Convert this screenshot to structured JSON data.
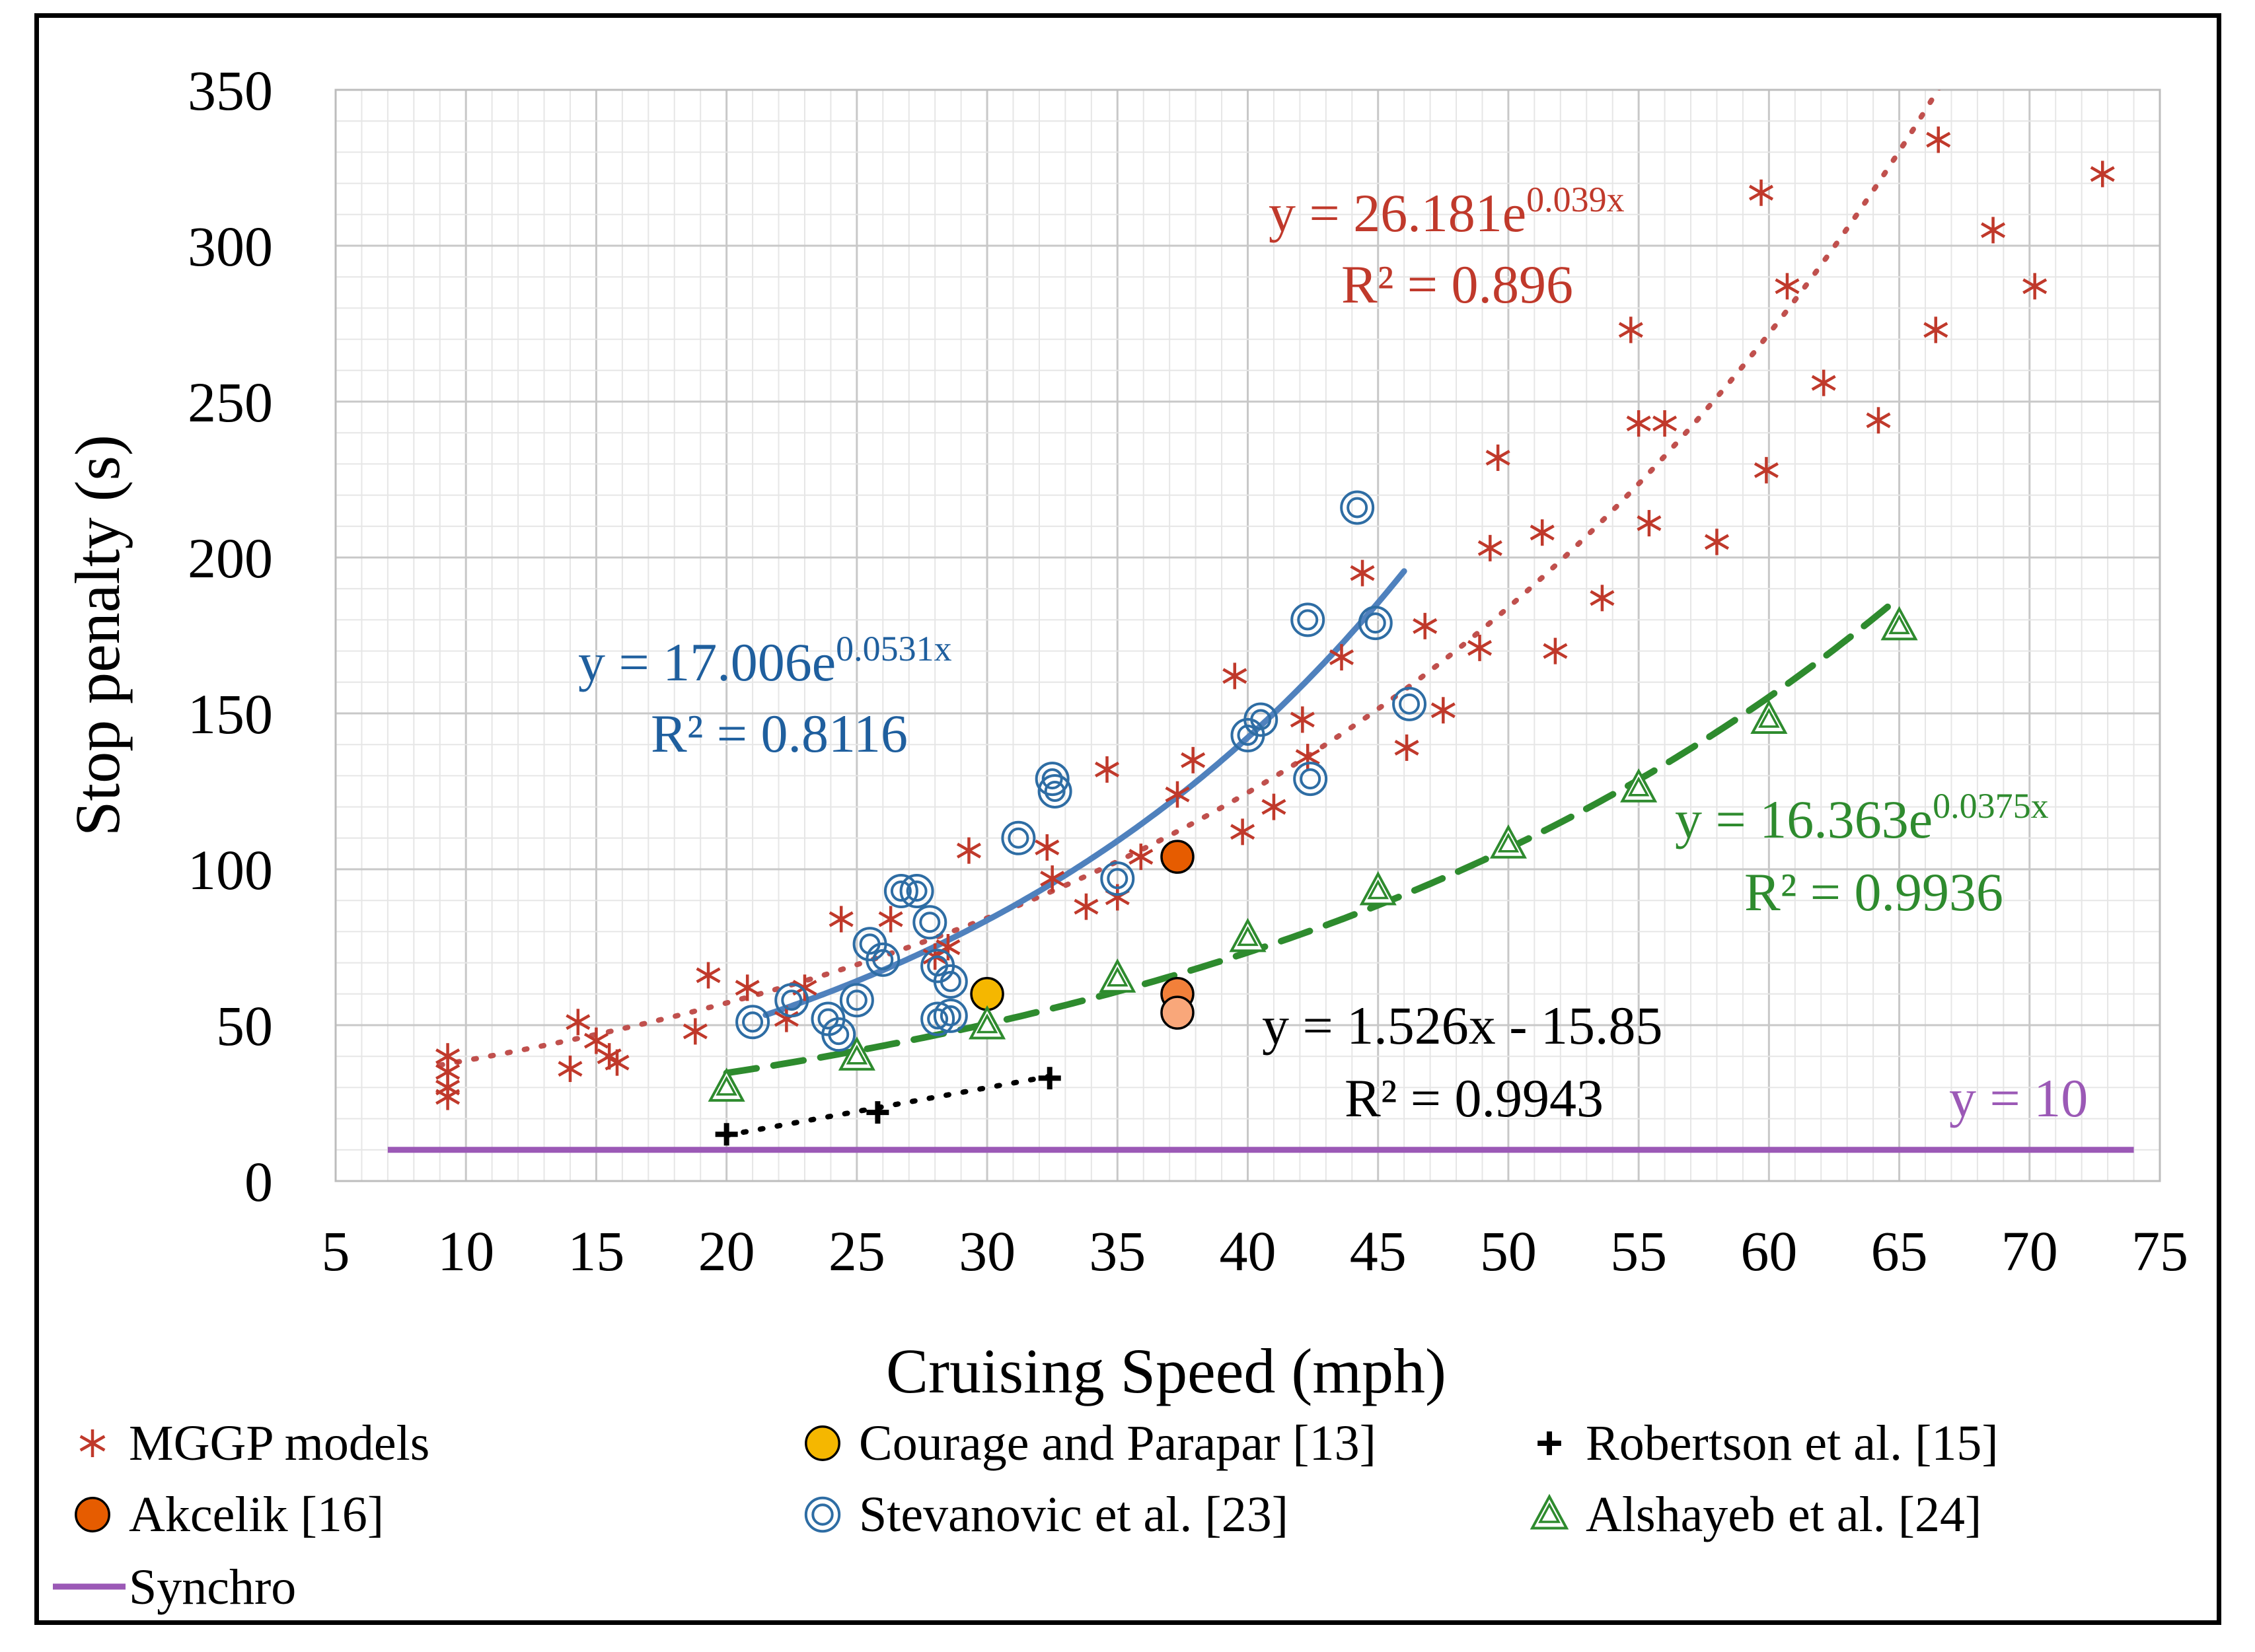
{
  "chart_data": {
    "type": "scatter",
    "xlabel": "Cruising Speed (mph)",
    "ylabel": "Stop penalty (s)",
    "xlim": [
      5,
      75
    ],
    "ylim": [
      0,
      350
    ],
    "xticks": [
      "5",
      "10",
      "15",
      "20",
      "25",
      "30",
      "35",
      "40",
      "45",
      "50",
      "55",
      "60",
      "65",
      "70",
      "75"
    ],
    "yticks": [
      "0",
      "50",
      "100",
      "150",
      "200",
      "250",
      "300",
      "350"
    ],
    "grid": true,
    "legend_position": "bottom",
    "series": [
      {
        "name": "MGGP models",
        "marker": "asterisk",
        "color": "#C0392B",
        "points": [
          [
            9.3,
            40
          ],
          [
            9.3,
            35
          ],
          [
            9.3,
            30
          ],
          [
            9.3,
            27
          ],
          [
            14,
            36
          ],
          [
            14.3,
            51
          ],
          [
            15,
            45
          ],
          [
            15.5,
            40
          ],
          [
            15.8,
            38
          ],
          [
            18.8,
            48
          ],
          [
            19.3,
            66
          ],
          [
            20.8,
            62
          ],
          [
            22.3,
            52
          ],
          [
            23,
            62
          ],
          [
            24.4,
            84
          ],
          [
            26.3,
            84
          ],
          [
            28,
            72
          ],
          [
            28.5,
            75
          ],
          [
            29.3,
            106
          ],
          [
            32.3,
            107
          ],
          [
            32.5,
            97
          ],
          [
            33.8,
            88
          ],
          [
            34.6,
            132
          ],
          [
            35,
            91
          ],
          [
            35.9,
            104
          ],
          [
            37.3,
            124
          ],
          [
            37.9,
            135
          ],
          [
            39.5,
            162
          ],
          [
            39.8,
            112
          ],
          [
            41,
            120
          ],
          [
            42.1,
            148
          ],
          [
            42.3,
            136
          ],
          [
            43.6,
            168
          ],
          [
            44.4,
            195
          ],
          [
            46.1,
            139
          ],
          [
            46.8,
            178
          ],
          [
            47.5,
            151
          ],
          [
            48.9,
            171
          ],
          [
            49.3,
            203
          ],
          [
            49.6,
            232
          ],
          [
            51.3,
            208
          ],
          [
            51.8,
            170
          ],
          [
            53.6,
            187
          ],
          [
            54.7,
            273
          ],
          [
            55,
            243
          ],
          [
            55.4,
            211
          ],
          [
            56,
            243
          ],
          [
            58,
            205
          ],
          [
            59.7,
            317
          ],
          [
            59.9,
            228
          ],
          [
            60.7,
            287
          ],
          [
            62.1,
            256
          ],
          [
            64.2,
            244
          ],
          [
            66.4,
            273
          ],
          [
            66.5,
            334
          ],
          [
            68.6,
            305
          ],
          [
            70.2,
            287
          ],
          [
            72.8,
            323
          ]
        ]
      },
      {
        "name": "Courage and Parapar [13]",
        "marker": "filled-circle",
        "color": "#F5B700",
        "points": [
          [
            30,
            60
          ]
        ]
      },
      {
        "name": "Robertson et al. [15]",
        "marker": "plus",
        "color": "#000000",
        "points": [
          [
            20,
            15
          ],
          [
            25.8,
            22
          ],
          [
            32.4,
            33
          ]
        ]
      },
      {
        "name": "Akcelik [16]",
        "marker": "filled-circle",
        "color": "#E65C00",
        "points": [
          [
            37.3,
            104
          ],
          [
            37.3,
            60
          ],
          [
            37.3,
            54
          ]
        ]
      },
      {
        "name": "Stevanovic et al. [23]",
        "marker": "double-circle",
        "color": "#2E6DA4",
        "points": [
          [
            21,
            51
          ],
          [
            22.5,
            58
          ],
          [
            23.9,
            52
          ],
          [
            24.3,
            47
          ],
          [
            25,
            58
          ],
          [
            25.5,
            76
          ],
          [
            26,
            71
          ],
          [
            26.7,
            93
          ],
          [
            27.3,
            93
          ],
          [
            27.8,
            83
          ],
          [
            28.1,
            69
          ],
          [
            28.1,
            52
          ],
          [
            28.6,
            64
          ],
          [
            28.6,
            53
          ],
          [
            31.2,
            110
          ],
          [
            32.5,
            129
          ],
          [
            32.6,
            125
          ],
          [
            35,
            97
          ],
          [
            40,
            143
          ],
          [
            40.5,
            148
          ],
          [
            42.3,
            180
          ],
          [
            42.4,
            129
          ],
          [
            44.2,
            216
          ],
          [
            44.9,
            179
          ],
          [
            46.2,
            153
          ]
        ]
      },
      {
        "name": "Alshayeb et al. [24]",
        "marker": "double-triangle",
        "color": "#2E8B2E",
        "points": [
          [
            20,
            30
          ],
          [
            25,
            40
          ],
          [
            30,
            50
          ],
          [
            35,
            65
          ],
          [
            40,
            78
          ],
          [
            45,
            93
          ],
          [
            50,
            108
          ],
          [
            55,
            126
          ],
          [
            60,
            148
          ],
          [
            65,
            178
          ]
        ]
      },
      {
        "name": "Synchro",
        "marker": "line",
        "color": "#9B59B6",
        "points": [
          [
            7,
            10
          ],
          [
            74,
            10
          ]
        ]
      }
    ],
    "trendlines": [
      {
        "series": "MGGP models",
        "type": "exponential",
        "a": 26.181,
        "b": 0.039,
        "range": [
          9,
          67
        ],
        "style": "dotted",
        "color": "#C0504D",
        "equation_prefix": "y = 26.181e",
        "equation_exponent": "0.039x",
        "r2": "R² = 0.896"
      },
      {
        "series": "Stevanovic et al. [23]",
        "type": "exponential",
        "a": 17.006,
        "b": 0.0531,
        "range": [
          21.5,
          46
        ],
        "style": "solid",
        "color": "#4F81BD",
        "equation_prefix": "y = 17.006e",
        "equation_exponent": "0.0531x",
        "r2": "R² = 0.8116"
      },
      {
        "series": "Alshayeb et al. [24]",
        "type": "exponential",
        "a": 16.363,
        "b": 0.0375,
        "range": [
          20,
          65
        ],
        "style": "dashed",
        "color": "#2E8B2E",
        "equation_prefix": "y = 16.363e",
        "equation_exponent": "0.0375x",
        "r2": "R² = 0.9936"
      },
      {
        "series": "Robertson et al. [15]",
        "type": "linear",
        "a": 1.526,
        "b": -15.85,
        "range": [
          20,
          32.4
        ],
        "style": "dotted",
        "color": "#000000",
        "equation": "y = 1.526x - 15.85",
        "r2": "R² = 0.9943"
      }
    ],
    "annotations": [
      {
        "text": "y = 10",
        "color": "#9B59B6"
      }
    ]
  }
}
